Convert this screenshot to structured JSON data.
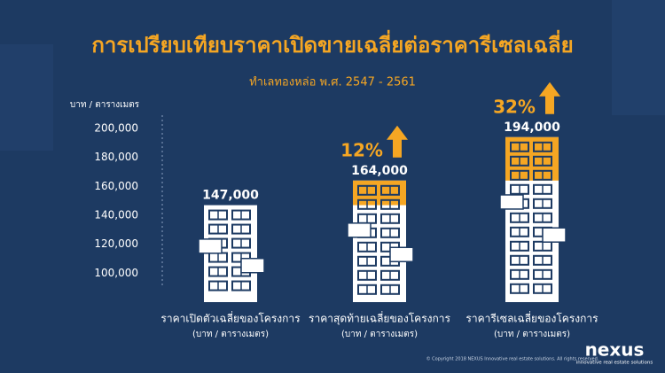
{
  "chart_data": {
    "type": "bar",
    "title": "การเปรียบเทียบราคาเปิดขายเฉลี่ยต่อราคารีเซลเฉลี่ย",
    "subtitle": "ทำเลทองหล่อ พ.ศ. 2547 - 2561",
    "y_axis_label": "บาท / ตารางเมตร",
    "categories": [
      "ราคาเปิดตัวเฉลี่ยของโครงการ",
      "ราคาสุดท้ายเฉลี่ยของโครงการ",
      "ราคารีเซลเฉลี่ยของโครงการ"
    ],
    "category_note": "(บาท / ตารางเมตร)",
    "values": [
      147000,
      164000,
      194000
    ],
    "value_labels": [
      "147,000",
      "164,000",
      "194,000"
    ],
    "annotations": [
      "12%",
      "32%"
    ],
    "color": "#ffffff",
    "highlight_color": "#f5a623",
    "ylim": [
      80000,
      200000
    ],
    "yticks": [
      {
        "value": 100000,
        "label": "100,000"
      },
      {
        "value": 120000,
        "label": "120,000"
      },
      {
        "value": 140000,
        "label": "140,000"
      },
      {
        "value": 160000,
        "label": "160,000"
      },
      {
        "value": 180000,
        "label": "180,000"
      },
      {
        "value": 200000,
        "label": "200,000"
      }
    ],
    "grid": false
  },
  "footer": {
    "copyright": "© Copyright 2018 NEXUS Innovative real estate solutions. All rights reserved.",
    "logo": "nexus",
    "tagline": "innovative real estate solutions"
  }
}
